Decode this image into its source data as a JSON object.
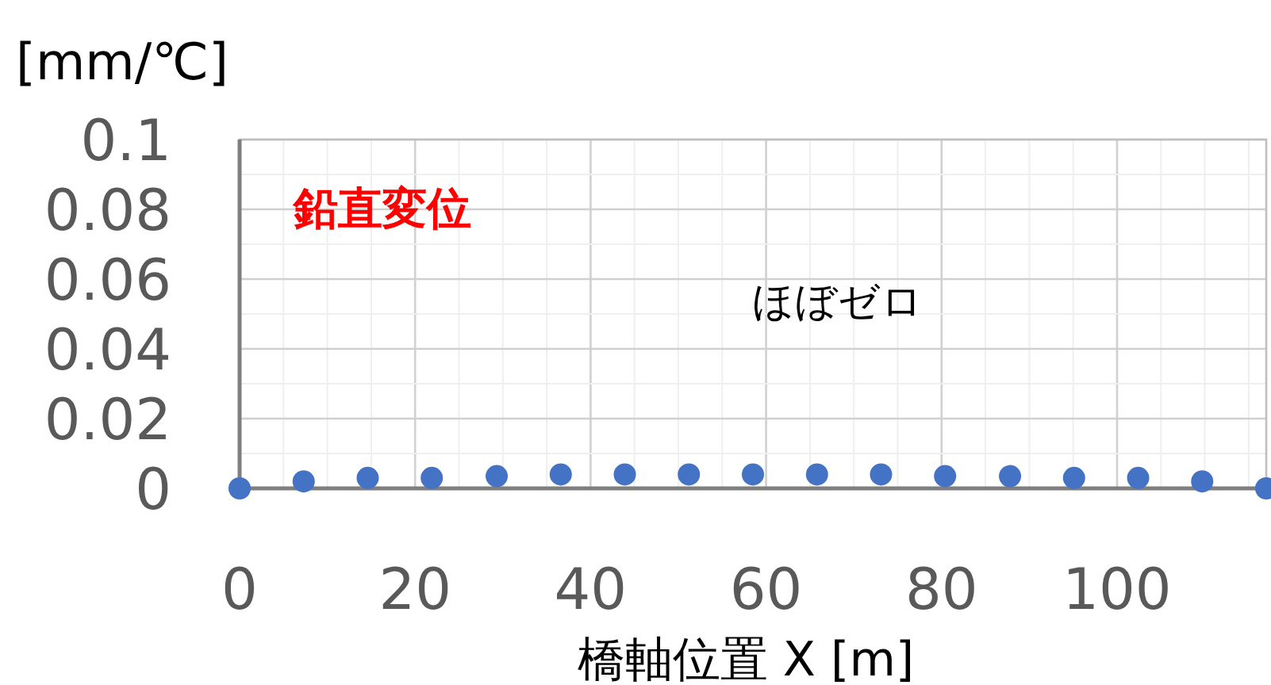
{
  "chart_data": {
    "type": "scatter",
    "xlabel": "橋軸位置 X [m]",
    "ylabel": "[mm/℃]",
    "annotations": [
      "鉛直変位",
      "ほぼゼロ"
    ],
    "x": [
      0,
      7.3,
      14.6,
      21.9,
      29.3,
      36.6,
      43.9,
      51.2,
      58.5,
      65.8,
      73.1,
      80.4,
      87.8,
      95.1,
      102.4,
      109.7,
      117
    ],
    "series": [
      {
        "color": "#4472c4",
        "values": [
          0,
          0.002,
          0.003,
          0.003,
          0.0035,
          0.004,
          0.004,
          0.004,
          0.004,
          0.004,
          0.004,
          0.0035,
          0.0035,
          0.003,
          0.003,
          0.002,
          0
        ]
      }
    ],
    "xlim": [
      0,
      117
    ],
    "xticks": [
      0,
      20,
      40,
      60,
      80,
      100
    ],
    "ylim": [
      0,
      0.1
    ],
    "yticks": [
      0,
      0.02,
      0.04,
      0.06,
      0.08,
      0.1
    ],
    "grid": true,
    "marker": "circle"
  }
}
